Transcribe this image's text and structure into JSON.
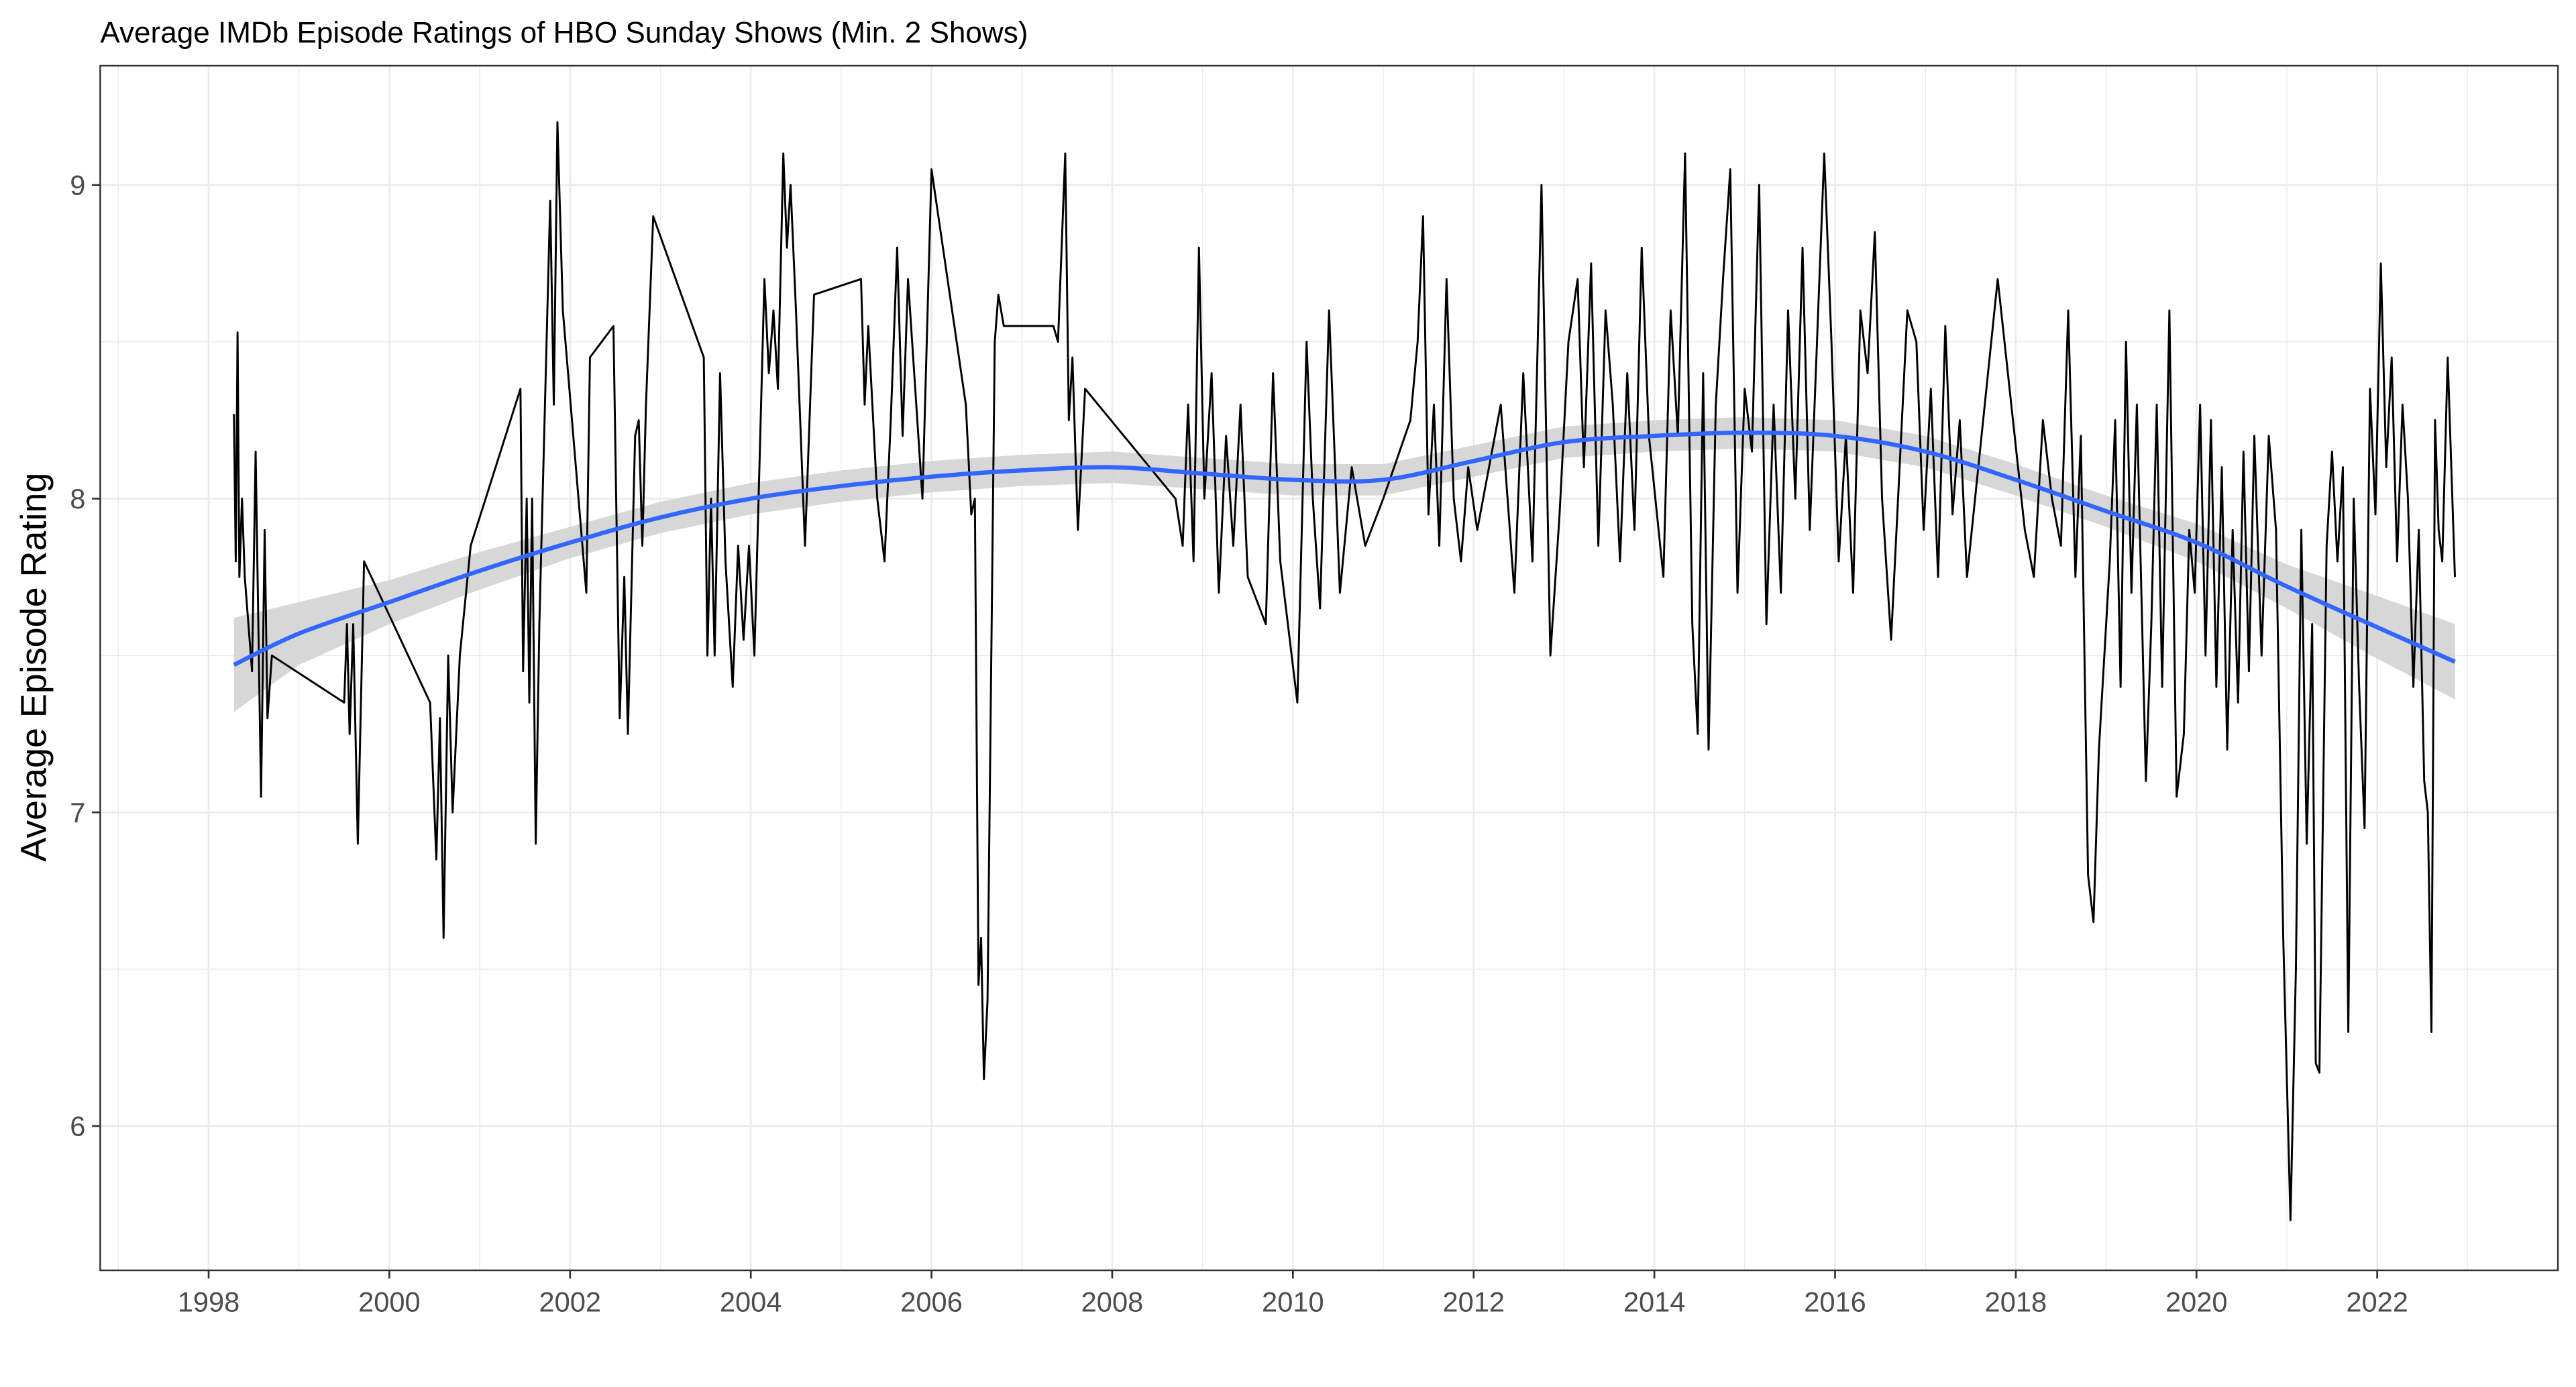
{
  "chart_data": {
    "type": "line",
    "title": "Average IMDb Episode Ratings of HBO Sunday Shows (Min. 2 Shows)",
    "xlabel": "",
    "ylabel": "Average Episode Rating",
    "xlim": [
      1996.8,
      2024.0
    ],
    "ylim": [
      5.54,
      9.38
    ],
    "x_ticks": [
      1998,
      2000,
      2002,
      2004,
      2006,
      2008,
      2010,
      2012,
      2014,
      2016,
      2018,
      2020,
      2022
    ],
    "y_ticks": [
      6,
      7,
      8,
      9
    ],
    "grid": true,
    "colors": {
      "line": "#000000",
      "smooth": "#3366FF",
      "band": "#D3D3D3",
      "grid": "#EBEBEB"
    },
    "series": [
      {
        "type": "line",
        "points": [
          [
            1998.28,
            8.27
          ],
          [
            1998.3,
            7.8
          ],
          [
            1998.32,
            8.53
          ],
          [
            1998.34,
            7.75
          ],
          [
            1998.37,
            8.0
          ],
          [
            1998.4,
            7.75
          ],
          [
            1998.48,
            7.45
          ],
          [
            1998.52,
            8.15
          ],
          [
            1998.58,
            7.05
          ],
          [
            1998.62,
            7.9
          ],
          [
            1998.65,
            7.3
          ],
          [
            1998.7,
            7.5
          ],
          [
            1999.5,
            7.35
          ],
          [
            1999.53,
            7.6
          ],
          [
            1999.56,
            7.25
          ],
          [
            1999.6,
            7.6
          ],
          [
            1999.65,
            6.9
          ],
          [
            1999.72,
            7.8
          ],
          [
            2000.45,
            7.35
          ],
          [
            2000.52,
            6.85
          ],
          [
            2000.56,
            7.3
          ],
          [
            2000.6,
            6.6
          ],
          [
            2000.65,
            7.5
          ],
          [
            2000.7,
            7.0
          ],
          [
            2000.78,
            7.5
          ],
          [
            2000.9,
            7.85
          ],
          [
            2001.45,
            8.35
          ],
          [
            2001.48,
            7.45
          ],
          [
            2001.52,
            8.0
          ],
          [
            2001.55,
            7.35
          ],
          [
            2001.58,
            8.0
          ],
          [
            2001.62,
            6.9
          ],
          [
            2001.66,
            7.6
          ],
          [
            2001.78,
            8.95
          ],
          [
            2001.82,
            8.3
          ],
          [
            2001.86,
            9.2
          ],
          [
            2001.92,
            8.6
          ],
          [
            2002.18,
            7.7
          ],
          [
            2002.22,
            8.45
          ],
          [
            2002.48,
            8.55
          ],
          [
            2002.55,
            7.3
          ],
          [
            2002.6,
            7.75
          ],
          [
            2002.64,
            7.25
          ],
          [
            2002.72,
            8.2
          ],
          [
            2002.76,
            8.25
          ],
          [
            2002.8,
            7.85
          ],
          [
            2002.84,
            8.3
          ],
          [
            2002.92,
            8.9
          ],
          [
            2003.48,
            8.45
          ],
          [
            2003.52,
            7.5
          ],
          [
            2003.56,
            8.0
          ],
          [
            2003.6,
            7.5
          ],
          [
            2003.66,
            8.4
          ],
          [
            2003.72,
            7.8
          ],
          [
            2003.8,
            7.4
          ],
          [
            2003.86,
            7.85
          ],
          [
            2003.92,
            7.55
          ],
          [
            2003.98,
            7.85
          ],
          [
            2004.04,
            7.5
          ],
          [
            2004.15,
            8.7
          ],
          [
            2004.2,
            8.4
          ],
          [
            2004.25,
            8.6
          ],
          [
            2004.3,
            8.35
          ],
          [
            2004.36,
            9.1
          ],
          [
            2004.4,
            8.8
          ],
          [
            2004.44,
            9.0
          ],
          [
            2004.5,
            8.6
          ],
          [
            2004.6,
            7.85
          ],
          [
            2004.7,
            8.65
          ],
          [
            2005.22,
            8.7
          ],
          [
            2005.26,
            8.3
          ],
          [
            2005.3,
            8.55
          ],
          [
            2005.4,
            8.0
          ],
          [
            2005.48,
            7.8
          ],
          [
            2005.55,
            8.25
          ],
          [
            2005.62,
            8.8
          ],
          [
            2005.68,
            8.2
          ],
          [
            2005.74,
            8.7
          ],
          [
            2005.9,
            8.0
          ],
          [
            2006.0,
            9.05
          ],
          [
            2006.38,
            8.3
          ],
          [
            2006.44,
            7.95
          ],
          [
            2006.48,
            8.0
          ],
          [
            2006.52,
            6.45
          ],
          [
            2006.55,
            6.6
          ],
          [
            2006.58,
            6.15
          ],
          [
            2006.62,
            6.4
          ],
          [
            2006.7,
            8.5
          ],
          [
            2006.74,
            8.65
          ],
          [
            2006.8,
            8.55
          ],
          [
            2007.35,
            8.55
          ],
          [
            2007.4,
            8.5
          ],
          [
            2007.48,
            9.1
          ],
          [
            2007.52,
            8.25
          ],
          [
            2007.56,
            8.45
          ],
          [
            2007.62,
            7.9
          ],
          [
            2007.7,
            8.35
          ],
          [
            2008.7,
            8.0
          ],
          [
            2008.78,
            7.85
          ],
          [
            2008.84,
            8.3
          ],
          [
            2008.9,
            7.8
          ],
          [
            2008.96,
            8.8
          ],
          [
            2009.02,
            8.0
          ],
          [
            2009.1,
            8.4
          ],
          [
            2009.18,
            7.7
          ],
          [
            2009.26,
            8.2
          ],
          [
            2009.34,
            7.85
          ],
          [
            2009.42,
            8.3
          ],
          [
            2009.5,
            7.75
          ],
          [
            2009.7,
            7.6
          ],
          [
            2009.78,
            8.4
          ],
          [
            2009.86,
            7.8
          ],
          [
            2010.05,
            7.35
          ],
          [
            2010.15,
            8.5
          ],
          [
            2010.22,
            8.0
          ],
          [
            2010.3,
            7.65
          ],
          [
            2010.4,
            8.6
          ],
          [
            2010.52,
            7.7
          ],
          [
            2010.65,
            8.1
          ],
          [
            2010.8,
            7.85
          ],
          [
            2011.0,
            8.0
          ],
          [
            2011.3,
            8.25
          ],
          [
            2011.38,
            8.5
          ],
          [
            2011.44,
            8.9
          ],
          [
            2011.5,
            7.95
          ],
          [
            2011.56,
            8.3
          ],
          [
            2011.62,
            7.85
          ],
          [
            2011.7,
            8.7
          ],
          [
            2011.78,
            8.0
          ],
          [
            2011.86,
            7.8
          ],
          [
            2011.94,
            8.1
          ],
          [
            2012.04,
            7.9
          ],
          [
            2012.3,
            8.3
          ],
          [
            2012.45,
            7.7
          ],
          [
            2012.55,
            8.4
          ],
          [
            2012.65,
            7.8
          ],
          [
            2012.75,
            9.0
          ],
          [
            2012.85,
            7.5
          ],
          [
            2012.95,
            7.95
          ],
          [
            2013.05,
            8.5
          ],
          [
            2013.15,
            8.7
          ],
          [
            2013.22,
            8.1
          ],
          [
            2013.3,
            8.75
          ],
          [
            2013.38,
            7.85
          ],
          [
            2013.46,
            8.6
          ],
          [
            2013.54,
            8.3
          ],
          [
            2013.62,
            7.8
          ],
          [
            2013.7,
            8.4
          ],
          [
            2013.78,
            7.9
          ],
          [
            2013.86,
            8.8
          ],
          [
            2013.94,
            8.2
          ],
          [
            2014.1,
            7.75
          ],
          [
            2014.18,
            8.6
          ],
          [
            2014.26,
            8.2
          ],
          [
            2014.34,
            9.1
          ],
          [
            2014.42,
            7.6
          ],
          [
            2014.48,
            7.25
          ],
          [
            2014.54,
            8.4
          ],
          [
            2014.6,
            7.2
          ],
          [
            2014.68,
            8.3
          ],
          [
            2014.76,
            8.7
          ],
          [
            2014.84,
            9.05
          ],
          [
            2014.92,
            7.7
          ],
          [
            2015.0,
            8.35
          ],
          [
            2015.08,
            8.15
          ],
          [
            2015.16,
            9.0
          ],
          [
            2015.24,
            7.6
          ],
          [
            2015.32,
            8.3
          ],
          [
            2015.4,
            7.7
          ],
          [
            2015.48,
            8.6
          ],
          [
            2015.56,
            8.0
          ],
          [
            2015.64,
            8.8
          ],
          [
            2015.72,
            7.9
          ],
          [
            2015.88,
            9.1
          ],
          [
            2015.96,
            8.5
          ],
          [
            2016.04,
            7.8
          ],
          [
            2016.12,
            8.2
          ],
          [
            2016.2,
            7.7
          ],
          [
            2016.28,
            8.6
          ],
          [
            2016.36,
            8.4
          ],
          [
            2016.44,
            8.85
          ],
          [
            2016.52,
            8.0
          ],
          [
            2016.62,
            7.55
          ],
          [
            2016.8,
            8.6
          ],
          [
            2016.9,
            8.5
          ],
          [
            2016.98,
            7.9
          ],
          [
            2017.06,
            8.35
          ],
          [
            2017.14,
            7.75
          ],
          [
            2017.22,
            8.55
          ],
          [
            2017.3,
            7.95
          ],
          [
            2017.38,
            8.25
          ],
          [
            2017.46,
            7.75
          ],
          [
            2017.8,
            8.7
          ],
          [
            2018.1,
            7.9
          ],
          [
            2018.2,
            7.75
          ],
          [
            2018.3,
            8.25
          ],
          [
            2018.4,
            8.0
          ],
          [
            2018.5,
            7.85
          ],
          [
            2018.58,
            8.6
          ],
          [
            2018.66,
            7.75
          ],
          [
            2018.72,
            8.2
          ],
          [
            2018.8,
            6.8
          ],
          [
            2018.86,
            6.65
          ],
          [
            2018.92,
            7.2
          ],
          [
            2018.98,
            7.5
          ],
          [
            2019.04,
            7.8
          ],
          [
            2019.1,
            8.25
          ],
          [
            2019.16,
            7.4
          ],
          [
            2019.22,
            8.5
          ],
          [
            2019.28,
            7.7
          ],
          [
            2019.34,
            8.3
          ],
          [
            2019.44,
            7.1
          ],
          [
            2019.5,
            7.6
          ],
          [
            2019.56,
            8.3
          ],
          [
            2019.62,
            7.4
          ],
          [
            2019.7,
            8.6
          ],
          [
            2019.78,
            7.05
          ],
          [
            2019.86,
            7.25
          ],
          [
            2019.92,
            7.9
          ],
          [
            2019.98,
            7.7
          ],
          [
            2020.04,
            8.3
          ],
          [
            2020.1,
            7.5
          ],
          [
            2020.16,
            8.25
          ],
          [
            2020.22,
            7.4
          ],
          [
            2020.28,
            8.1
          ],
          [
            2020.34,
            7.2
          ],
          [
            2020.4,
            7.9
          ],
          [
            2020.46,
            7.35
          ],
          [
            2020.52,
            8.15
          ],
          [
            2020.58,
            7.45
          ],
          [
            2020.64,
            8.2
          ],
          [
            2020.72,
            7.5
          ],
          [
            2020.8,
            8.2
          ],
          [
            2020.88,
            7.9
          ],
          [
            2020.96,
            6.6
          ],
          [
            2021.04,
            5.7
          ],
          [
            2021.1,
            6.5
          ],
          [
            2021.16,
            7.9
          ],
          [
            2021.22,
            6.9
          ],
          [
            2021.28,
            7.6
          ],
          [
            2021.32,
            6.2
          ],
          [
            2021.36,
            6.17
          ],
          [
            2021.44,
            7.85
          ],
          [
            2021.5,
            8.15
          ],
          [
            2021.56,
            7.8
          ],
          [
            2021.62,
            8.1
          ],
          [
            2021.68,
            6.3
          ],
          [
            2021.74,
            8.0
          ],
          [
            2021.8,
            7.4
          ],
          [
            2021.86,
            6.95
          ],
          [
            2021.92,
            8.35
          ],
          [
            2021.98,
            7.95
          ],
          [
            2022.04,
            8.75
          ],
          [
            2022.1,
            8.1
          ],
          [
            2022.16,
            8.45
          ],
          [
            2022.22,
            7.8
          ],
          [
            2022.28,
            8.3
          ],
          [
            2022.34,
            8.0
          ],
          [
            2022.4,
            7.4
          ],
          [
            2022.46,
            7.9
          ],
          [
            2022.52,
            7.1
          ],
          [
            2022.56,
            7.0
          ],
          [
            2022.6,
            6.3
          ],
          [
            2022.64,
            8.25
          ],
          [
            2022.68,
            7.9
          ],
          [
            2022.72,
            7.8
          ],
          [
            2022.78,
            8.45
          ],
          [
            2022.86,
            7.75
          ]
        ]
      },
      {
        "type": "smooth",
        "points": [
          [
            1998.28,
            7.47
          ],
          [
            1999,
            7.57
          ],
          [
            2000,
            7.67
          ],
          [
            2001,
            7.77
          ],
          [
            2002,
            7.86
          ],
          [
            2003,
            7.94
          ],
          [
            2004,
            8.0
          ],
          [
            2005,
            8.04
          ],
          [
            2006,
            8.07
          ],
          [
            2007,
            8.09
          ],
          [
            2008,
            8.1
          ],
          [
            2009,
            8.08
          ],
          [
            2010,
            8.06
          ],
          [
            2011,
            8.06
          ],
          [
            2012,
            8.12
          ],
          [
            2013,
            8.18
          ],
          [
            2014,
            8.2
          ],
          [
            2015,
            8.21
          ],
          [
            2016,
            8.2
          ],
          [
            2017,
            8.15
          ],
          [
            2018,
            8.06
          ],
          [
            2019,
            7.96
          ],
          [
            2020,
            7.86
          ],
          [
            2021,
            7.72
          ],
          [
            2022,
            7.59
          ],
          [
            2022.86,
            7.48
          ]
        ],
        "se": [
          0.15,
          0.1,
          0.07,
          0.06,
          0.05,
          0.05,
          0.05,
          0.05,
          0.05,
          0.05,
          0.05,
          0.05,
          0.05,
          0.05,
          0.05,
          0.05,
          0.05,
          0.05,
          0.05,
          0.05,
          0.05,
          0.05,
          0.06,
          0.07,
          0.1,
          0.12
        ]
      }
    ]
  }
}
